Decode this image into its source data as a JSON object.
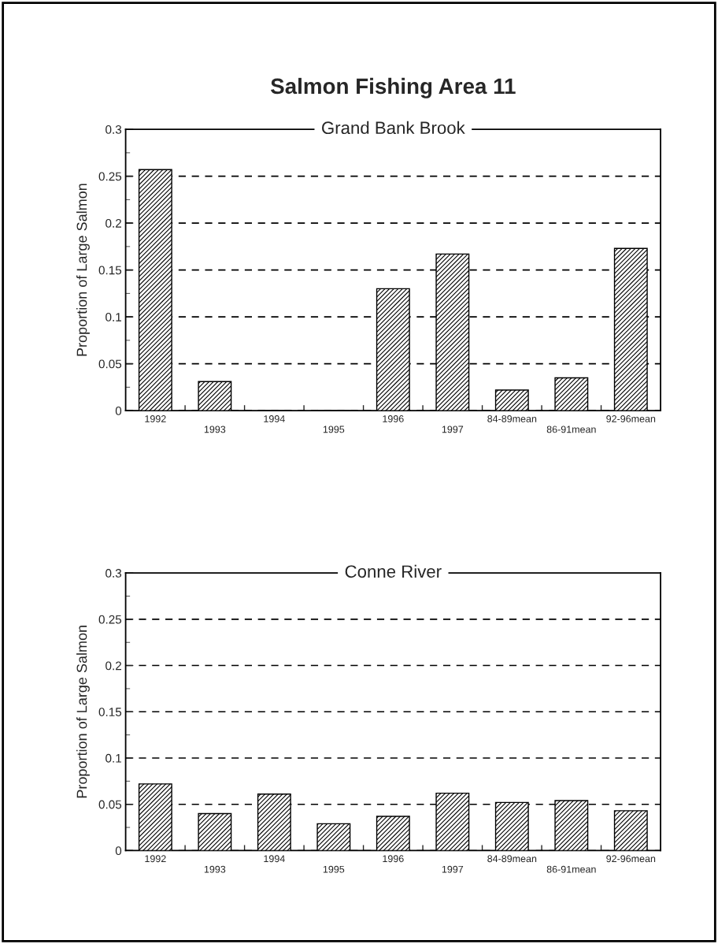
{
  "chart_data": [
    {
      "type": "bar",
      "title": "Salmon Fishing Area 11",
      "subtitle": "Grand Bank Brook",
      "ylabel": "Proportion of Large Salmon",
      "categories": [
        "1992",
        "1993",
        "1994",
        "1995",
        "1996",
        "1997",
        "84-89mean",
        "86-91mean",
        "92-96mean"
      ],
      "values": [
        0.257,
        0.031,
        0,
        0,
        0.13,
        0.167,
        0.022,
        0.035,
        0.173
      ],
      "color": "#000000",
      "ylim": [
        0,
        0.3
      ],
      "yticks": [
        0,
        0.05,
        0.1,
        0.15,
        0.2,
        0.25,
        0.3
      ],
      "grid": "y",
      "legend": false
    },
    {
      "type": "bar",
      "subtitle": "Conne River",
      "ylabel": "Proportion of Large Salmon",
      "categories": [
        "1992",
        "1993",
        "1994",
        "1995",
        "1996",
        "1997",
        "84-89mean",
        "86-91mean",
        "92-96mean"
      ],
      "values": [
        0.072,
        0.04,
        0.061,
        0.029,
        0.037,
        0.062,
        0.052,
        0.054,
        0.043
      ],
      "color": "#000000",
      "ylim": [
        0,
        0.3
      ],
      "yticks": [
        0,
        0.05,
        0.1,
        0.15,
        0.2,
        0.25,
        0.3
      ],
      "grid": "y",
      "legend": false
    }
  ]
}
